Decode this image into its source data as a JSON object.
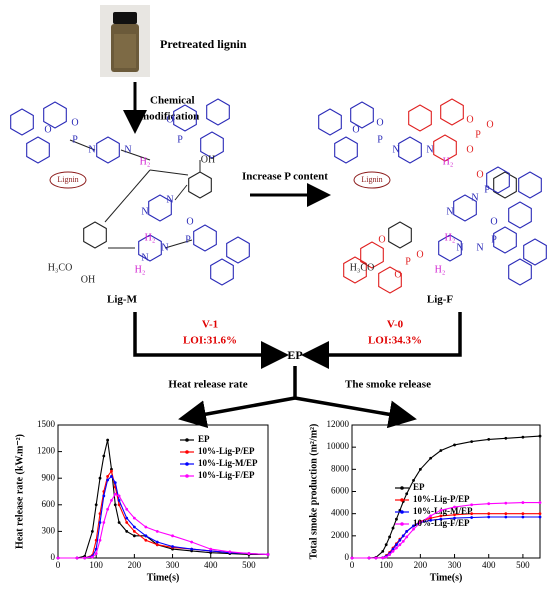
{
  "diagram": {
    "photo_label": "Pretreated lignin",
    "step1": [
      "Chemical",
      "modification"
    ],
    "step2": "Increase P content",
    "left": {
      "name": "Lig-M",
      "atoms": [
        "O",
        "P",
        "O",
        "N",
        "N",
        "H₂",
        "OH",
        "Lignin",
        "O",
        "P",
        "N",
        "N",
        "H₂",
        "H₃CO",
        "OH",
        "H₂",
        "N",
        "N",
        "P",
        "O"
      ]
    },
    "right": {
      "name": "Lig-F",
      "atoms": [
        "O",
        "P",
        "O",
        "N",
        "N",
        "H₂",
        "O",
        "P",
        "O",
        "O",
        "Lignin",
        "O",
        "P",
        "N",
        "N",
        "H₂",
        "H₃CO",
        "O",
        "P",
        "O",
        "O",
        "H₂",
        "N",
        "N",
        "P",
        "O"
      ]
    },
    "left_result": {
      "rating": "V-1",
      "loi": "LOI:31.6%"
    },
    "right_result": {
      "rating": "V-0",
      "loi": "LOI:34.3%"
    },
    "product": "EP",
    "branch_left": "Heat release rate",
    "branch_right": "The smoke release"
  },
  "chart_data": [
    {
      "type": "line",
      "x_label": "Time(s)",
      "y_label": "Heat release rate (kW.m⁻²)",
      "x": [
        0,
        50,
        70,
        90,
        100,
        110,
        120,
        130,
        140,
        150,
        160,
        180,
        200,
        230,
        260,
        300,
        350,
        400,
        450,
        500,
        550
      ],
      "xlim": [
        0,
        550
      ],
      "xticks": [
        0,
        100,
        200,
        300,
        400,
        500
      ],
      "ylim": [
        0,
        1500
      ],
      "yticks": [
        0,
        300,
        600,
        900,
        1200,
        1500
      ],
      "series": [
        {
          "name": "EP",
          "color": "#000000",
          "values": [
            0,
            0,
            20,
            300,
            600,
            900,
            1150,
            1330,
            1000,
            600,
            400,
            300,
            250,
            250,
            150,
            100,
            80,
            60,
            50,
            40,
            40
          ]
        },
        {
          "name": "10%-Lig-P/EP",
          "color": "#ff0000",
          "values": [
            0,
            0,
            0,
            30,
            200,
            500,
            750,
            920,
            980,
            800,
            600,
            400,
            300,
            200,
            150,
            120,
            100,
            80,
            60,
            50,
            40
          ]
        },
        {
          "name": "10%-Lig-M/EP",
          "color": "#0000ff",
          "values": [
            0,
            0,
            0,
            20,
            100,
            400,
            700,
            880,
            920,
            850,
            650,
            450,
            350,
            250,
            180,
            130,
            100,
            80,
            60,
            50,
            40
          ]
        },
        {
          "name": "10%-Lig-F/EP",
          "color": "#ff00ff",
          "values": [
            0,
            0,
            0,
            10,
            50,
            200,
            400,
            550,
            650,
            720,
            700,
            550,
            450,
            350,
            300,
            250,
            180,
            100,
            70,
            50,
            40
          ]
        }
      ]
    },
    {
      "type": "line",
      "x_label": "Time(s)",
      "y_label": "Total smoke production (m²/m²)",
      "x": [
        0,
        50,
        70,
        90,
        100,
        110,
        120,
        130,
        140,
        150,
        160,
        180,
        200,
        230,
        260,
        300,
        350,
        400,
        450,
        500,
        550
      ],
      "xlim": [
        0,
        550
      ],
      "xticks": [
        0,
        100,
        200,
        300,
        400,
        500
      ],
      "ylim": [
        0,
        12000
      ],
      "yticks": [
        0,
        2000,
        4000,
        6000,
        8000,
        10000,
        12000
      ],
      "series": [
        {
          "name": "EP",
          "color": "#000000",
          "values": [
            0,
            0,
            50,
            600,
            1200,
            1900,
            2700,
            3500,
            4300,
            5100,
            5800,
            7000,
            8000,
            9000,
            9700,
            10200,
            10500,
            10700,
            10800,
            10900,
            11000
          ]
        },
        {
          "name": "10%-Lig-P/EP",
          "color": "#ff0000",
          "values": [
            0,
            0,
            0,
            30,
            200,
            500,
            900,
            1300,
            1700,
            2000,
            2400,
            2900,
            3300,
            3600,
            3800,
            3900,
            4000,
            4000,
            4000,
            4000,
            4000
          ]
        },
        {
          "name": "10%-Lig-M/EP",
          "color": "#0000ff",
          "values": [
            0,
            0,
            0,
            20,
            150,
            400,
            800,
            1200,
            1600,
            2000,
            2400,
            2900,
            3200,
            3400,
            3500,
            3600,
            3650,
            3700,
            3700,
            3700,
            3700
          ]
        },
        {
          "name": "10%-Lig-F/EP",
          "color": "#ff00ff",
          "values": [
            0,
            0,
            0,
            10,
            80,
            300,
            600,
            900,
            1200,
            1500,
            1900,
            2600,
            3200,
            3800,
            4300,
            4600,
            4800,
            4900,
            4950,
            5000,
            5000
          ]
        }
      ]
    }
  ]
}
